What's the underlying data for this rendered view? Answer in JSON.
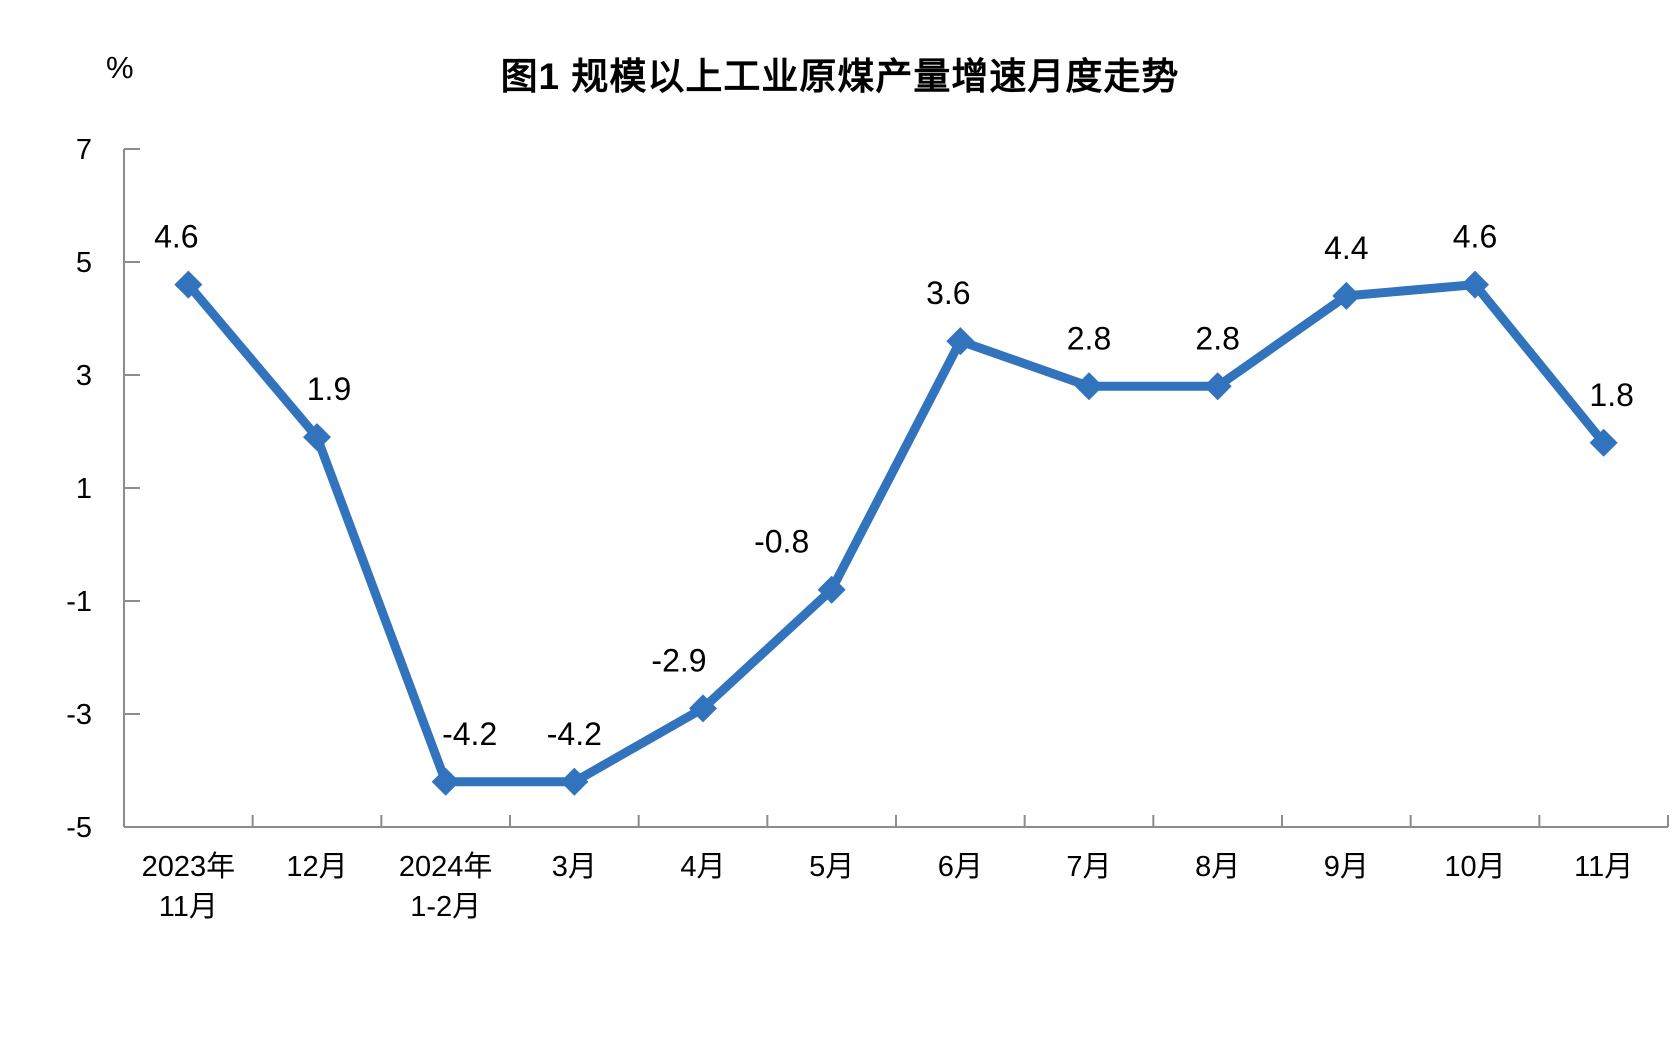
{
  "chart_data": {
    "type": "line",
    "title": "图1 规模以上工业原煤产量增速月度走势",
    "ylabel": "%",
    "xlabel": "",
    "categories": [
      [
        "2023年",
        "11月"
      ],
      [
        "12月"
      ],
      [
        "2024年",
        "1-2月"
      ],
      [
        "3月"
      ],
      [
        "4月"
      ],
      [
        "5月"
      ],
      [
        "6月"
      ],
      [
        "7月"
      ],
      [
        "8月"
      ],
      [
        "9月"
      ],
      [
        "10月"
      ],
      [
        "11月"
      ]
    ],
    "values": [
      4.6,
      1.9,
      -4.2,
      -4.2,
      -2.9,
      -0.8,
      3.6,
      2.8,
      2.8,
      4.4,
      4.6,
      1.8
    ],
    "data_labels": [
      "4.6",
      "1.9",
      "-4.2",
      "-4.2",
      "-2.9",
      "-0.8",
      "3.6",
      "2.8",
      "2.8",
      "4.4",
      "4.6",
      "1.8"
    ],
    "y_ticks": [
      7,
      5,
      3,
      1,
      -1,
      -3,
      -5
    ],
    "ylim": [
      -5,
      7
    ],
    "grid": false,
    "legend": "none",
    "marker": "diamond",
    "colors": {
      "series": "#3173BC",
      "axis": "#8C8C8C",
      "text": "#000000",
      "background": "#FFFFFF"
    }
  }
}
